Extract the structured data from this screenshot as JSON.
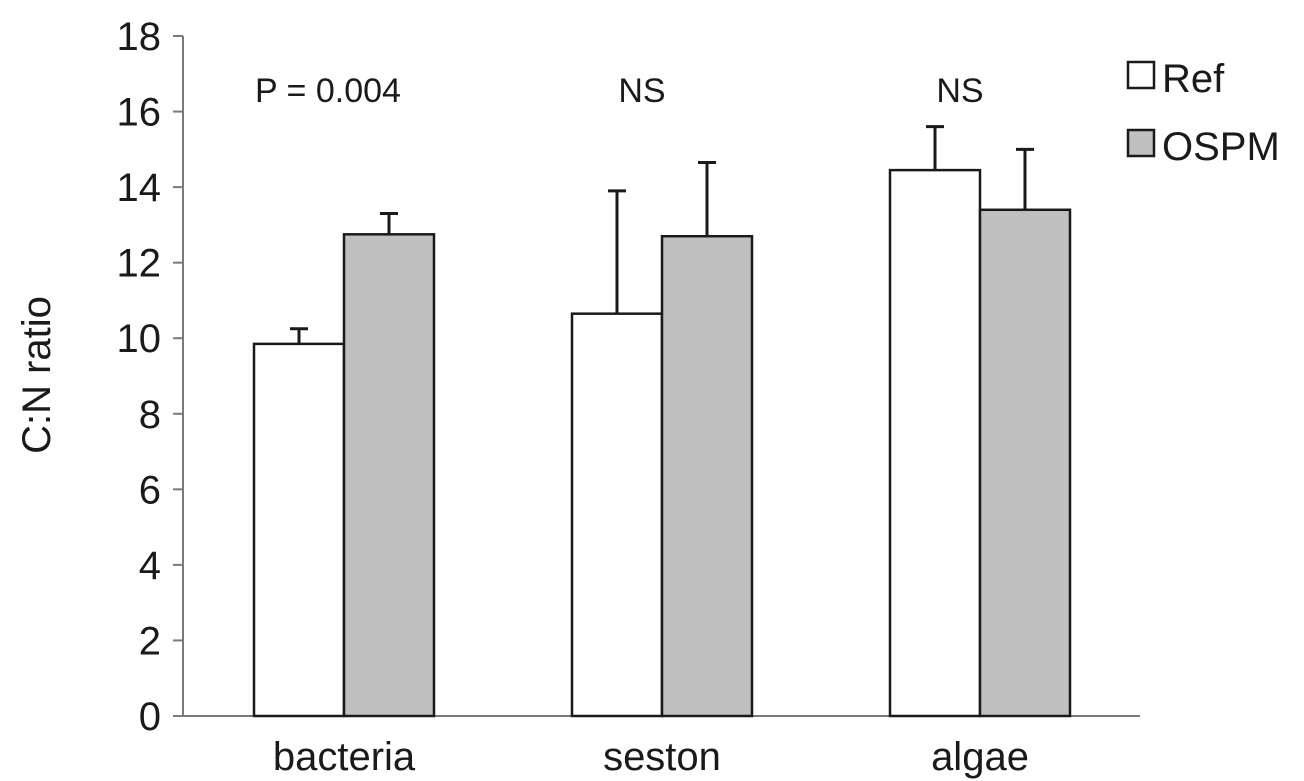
{
  "chart_data": {
    "type": "bar",
    "title": "",
    "xlabel": "",
    "ylabel": "C:N ratio",
    "ylim": [
      0,
      18
    ],
    "yticks": [
      "0",
      "2",
      "4",
      "6",
      "8",
      "10",
      "12",
      "14",
      "16",
      "18"
    ],
    "categories": [
      "bacteria",
      "seston",
      "algae"
    ],
    "series": [
      {
        "name": "Ref",
        "color": "#ffffff",
        "values": [
          9.85,
          10.65,
          14.45
        ],
        "errors": [
          0.4,
          3.25,
          1.15
        ]
      },
      {
        "name": "OSPM",
        "color": "#c0c0c0",
        "values": [
          12.75,
          12.7,
          13.4
        ],
        "errors": [
          0.55,
          1.95,
          1.6
        ]
      }
    ],
    "annotations": [
      "P = 0.004",
      "NS",
      "NS"
    ],
    "legend_position": "top-right",
    "grid": false
  }
}
